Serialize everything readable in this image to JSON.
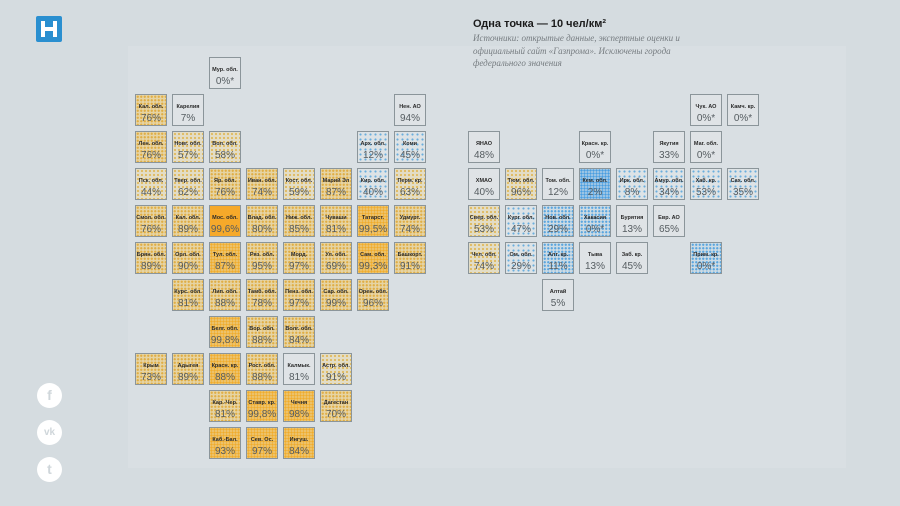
{
  "logo": {
    "label": "Н",
    "color": "#2a8fd0"
  },
  "legend": {
    "title": "Одна точка — 10 чел/км²",
    "source": "Источники: открытые данные, экспертные оценки и официальный сайт «Газпрома». Исключены города федерального значения"
  },
  "social": [
    {
      "label": "f",
      "icon": "facebook-icon"
    },
    {
      "label": "vk",
      "icon": "vk-icon"
    },
    {
      "label": "t",
      "icon": "twitter-icon"
    }
  ],
  "chart_data": {
    "type": "tile-map",
    "title": "Одна точка — 10 чел/км²",
    "regions": [
      {
        "name": "Мур. обл.",
        "value": "0%*",
        "tone": "o0"
      },
      {
        "name": "Кал. обл.",
        "value": "76%",
        "tone": "o2"
      },
      {
        "name": "Карелия",
        "value": "7%",
        "tone": "o0"
      },
      {
        "name": "Нен. АО",
        "value": "94%",
        "tone": "o0"
      },
      {
        "name": "Лен. обл.",
        "value": "76%",
        "tone": "o2"
      },
      {
        "name": "Новг. обл.",
        "value": "57%",
        "tone": "o1"
      },
      {
        "name": "Вол. обл.",
        "value": "58%",
        "tone": "o1"
      },
      {
        "name": "Арх. обл.",
        "value": "12%",
        "tone": "b1"
      },
      {
        "name": "Коми",
        "value": "45%",
        "tone": "b1"
      },
      {
        "name": "Пск. обл.",
        "value": "44%",
        "tone": "o1"
      },
      {
        "name": "Твер. обл.",
        "value": "62%",
        "tone": "o1"
      },
      {
        "name": "Яр. обл.",
        "value": "76%",
        "tone": "o2"
      },
      {
        "name": "Иван. обл.",
        "value": "74%",
        "tone": "o2"
      },
      {
        "name": "Кост. обл.",
        "value": "59%",
        "tone": "o1"
      },
      {
        "name": "Марий Эл",
        "value": "87%",
        "tone": "o2"
      },
      {
        "name": "Кир. обл.",
        "value": "40%",
        "tone": "b1"
      },
      {
        "name": "Перм. кр.",
        "value": "63%",
        "tone": "o1"
      },
      {
        "name": "Смол. обл.",
        "value": "76%",
        "tone": "o2"
      },
      {
        "name": "Кал. обл.",
        "value": "89%",
        "tone": "o2"
      },
      {
        "name": "Мос. обл.",
        "value": "99,6%",
        "tone": "o4"
      },
      {
        "name": "Влад. обл.",
        "value": "80%",
        "tone": "o2"
      },
      {
        "name": "Ниж. обл.",
        "value": "85%",
        "tone": "o2"
      },
      {
        "name": "Чуваши",
        "value": "81%",
        "tone": "o2"
      },
      {
        "name": "Татарст.",
        "value": "99,5%",
        "tone": "o3"
      },
      {
        "name": "Удмурт.",
        "value": "74%",
        "tone": "o2"
      },
      {
        "name": "Брян. обл.",
        "value": "89%",
        "tone": "o2"
      },
      {
        "name": "Орл. обл.",
        "value": "90%",
        "tone": "o2"
      },
      {
        "name": "Тул. обл.",
        "value": "87%",
        "tone": "o3"
      },
      {
        "name": "Ряз. обл.",
        "value": "95%",
        "tone": "o2"
      },
      {
        "name": "Морд.",
        "value": "97%",
        "tone": "o2"
      },
      {
        "name": "Ул. обл.",
        "value": "69%",
        "tone": "o2"
      },
      {
        "name": "Сам. обл.",
        "value": "99,3%",
        "tone": "o3"
      },
      {
        "name": "Башкорт.",
        "value": "91%",
        "tone": "o2"
      },
      {
        "name": "Курс. обл.",
        "value": "81%",
        "tone": "o2"
      },
      {
        "name": "Лип. обл.",
        "value": "88%",
        "tone": "o2"
      },
      {
        "name": "Тамб. обл.",
        "value": "78%",
        "tone": "o2"
      },
      {
        "name": "Пенз. обл.",
        "value": "97%",
        "tone": "o2"
      },
      {
        "name": "Сар. обл.",
        "value": "99%",
        "tone": "o2"
      },
      {
        "name": "Орен. обл.",
        "value": "96%",
        "tone": "o2"
      },
      {
        "name": "Белг. обл.",
        "value": "99,8%",
        "tone": "o3"
      },
      {
        "name": "Вор. обл.",
        "value": "88%",
        "tone": "o2"
      },
      {
        "name": "Волг. обл.",
        "value": "84%",
        "tone": "o2"
      },
      {
        "name": "Крым",
        "value": "73%",
        "tone": "o2"
      },
      {
        "name": "Адыгея",
        "value": "89%",
        "tone": "o2"
      },
      {
        "name": "Красн. кр.",
        "value": "88%",
        "tone": "o3"
      },
      {
        "name": "Рост. обл.",
        "value": "88%",
        "tone": "o2"
      },
      {
        "name": "Калмык.",
        "value": "81%",
        "tone": "o0"
      },
      {
        "name": "Астр. обл.",
        "value": "91%",
        "tone": "o1"
      },
      {
        "name": "Кар.-Чер.",
        "value": "81%",
        "tone": "o2"
      },
      {
        "name": "Ставр. кр.",
        "value": "99,8%",
        "tone": "o3"
      },
      {
        "name": "Чечня",
        "value": "98%",
        "tone": "o3"
      },
      {
        "name": "Дагестан",
        "value": "70%",
        "tone": "o2"
      },
      {
        "name": "Каб.-Бал.",
        "value": "93%",
        "tone": "o3"
      },
      {
        "name": "Сев. Ос.",
        "value": "97%",
        "tone": "o3"
      },
      {
        "name": "Ингуш.",
        "value": "84%",
        "tone": "o3"
      },
      {
        "name": "ЯНАО",
        "value": "48%",
        "tone": "o0"
      },
      {
        "name": "Красн. кр.",
        "value": "0%*",
        "tone": "o0"
      },
      {
        "name": "Якутия",
        "value": "33%",
        "tone": "o0"
      },
      {
        "name": "Маг. обл.",
        "value": "0%*",
        "tone": "o0"
      },
      {
        "name": "Чук. АО",
        "value": "0%*",
        "tone": "o0"
      },
      {
        "name": "Камч. кр.",
        "value": "0%*",
        "tone": "o0"
      },
      {
        "name": "ХМАО",
        "value": "40%",
        "tone": "o0"
      },
      {
        "name": "Тюм. обл.",
        "value": "96%",
        "tone": "o1"
      },
      {
        "name": "Том. обл.",
        "value": "12%",
        "tone": "o0"
      },
      {
        "name": "Кем. обл.",
        "value": "2%",
        "tone": "b3"
      },
      {
        "name": "Ирк. обл.",
        "value": "8%",
        "tone": "b1"
      },
      {
        "name": "Амур. обл.",
        "value": "34%",
        "tone": "b1"
      },
      {
        "name": "Хаб. кр.",
        "value": "53%",
        "tone": "b1"
      },
      {
        "name": "Сах. обл.",
        "value": "35%",
        "tone": "b1"
      },
      {
        "name": "Свер. обл.",
        "value": "53%",
        "tone": "o1"
      },
      {
        "name": "Кург. обл.",
        "value": "47%",
        "tone": "b1"
      },
      {
        "name": "Нов. обл.",
        "value": "29%",
        "tone": "b2"
      },
      {
        "name": "Хакасия",
        "value": "0%*",
        "tone": "b2"
      },
      {
        "name": "Бурятия",
        "value": "13%",
        "tone": "o0"
      },
      {
        "name": "Евр. АО",
        "value": "65%",
        "tone": "o0"
      },
      {
        "name": "Чел. обл.",
        "value": "74%",
        "tone": "o1"
      },
      {
        "name": "Ом. обл.",
        "value": "29%",
        "tone": "b1"
      },
      {
        "name": "Алт. кр.",
        "value": "11%",
        "tone": "b2"
      },
      {
        "name": "Тыва",
        "value": "13%",
        "tone": "o0"
      },
      {
        "name": "Заб. кр.",
        "value": "45%",
        "tone": "o0"
      },
      {
        "name": "Прим. кр.",
        "value": "0%*",
        "tone": "b2"
      },
      {
        "name": "Алтай",
        "value": "5%",
        "tone": "o0"
      }
    ]
  }
}
